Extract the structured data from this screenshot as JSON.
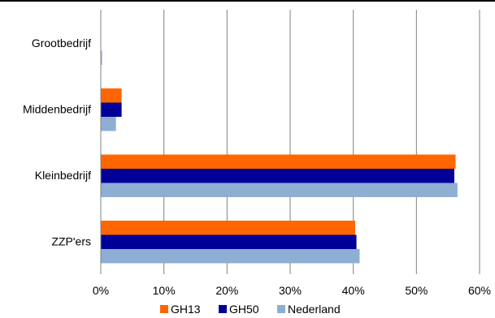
{
  "chart_data": {
    "type": "bar",
    "orientation": "horizontal",
    "categories": [
      "Grootbedrijf",
      "Middenbedrijf",
      "Kleinbedrijf",
      "ZZP'ers"
    ],
    "series": [
      {
        "name": "GH13",
        "color": "#ff6600",
        "values": [
          0.0,
          3.3,
          56.2,
          40.3
        ]
      },
      {
        "name": "GH50",
        "color": "#000099",
        "values": [
          0.0,
          3.3,
          56.0,
          40.5
        ]
      },
      {
        "name": "Nederland",
        "color": "#8eaed4",
        "values": [
          0.2,
          2.4,
          56.5,
          41.0
        ]
      }
    ],
    "x_ticks": [
      "0%",
      "10%",
      "20%",
      "30%",
      "40%",
      "50%",
      "60%"
    ],
    "xlim": [
      0,
      60
    ],
    "grid": true,
    "legend_position": "bottom"
  }
}
